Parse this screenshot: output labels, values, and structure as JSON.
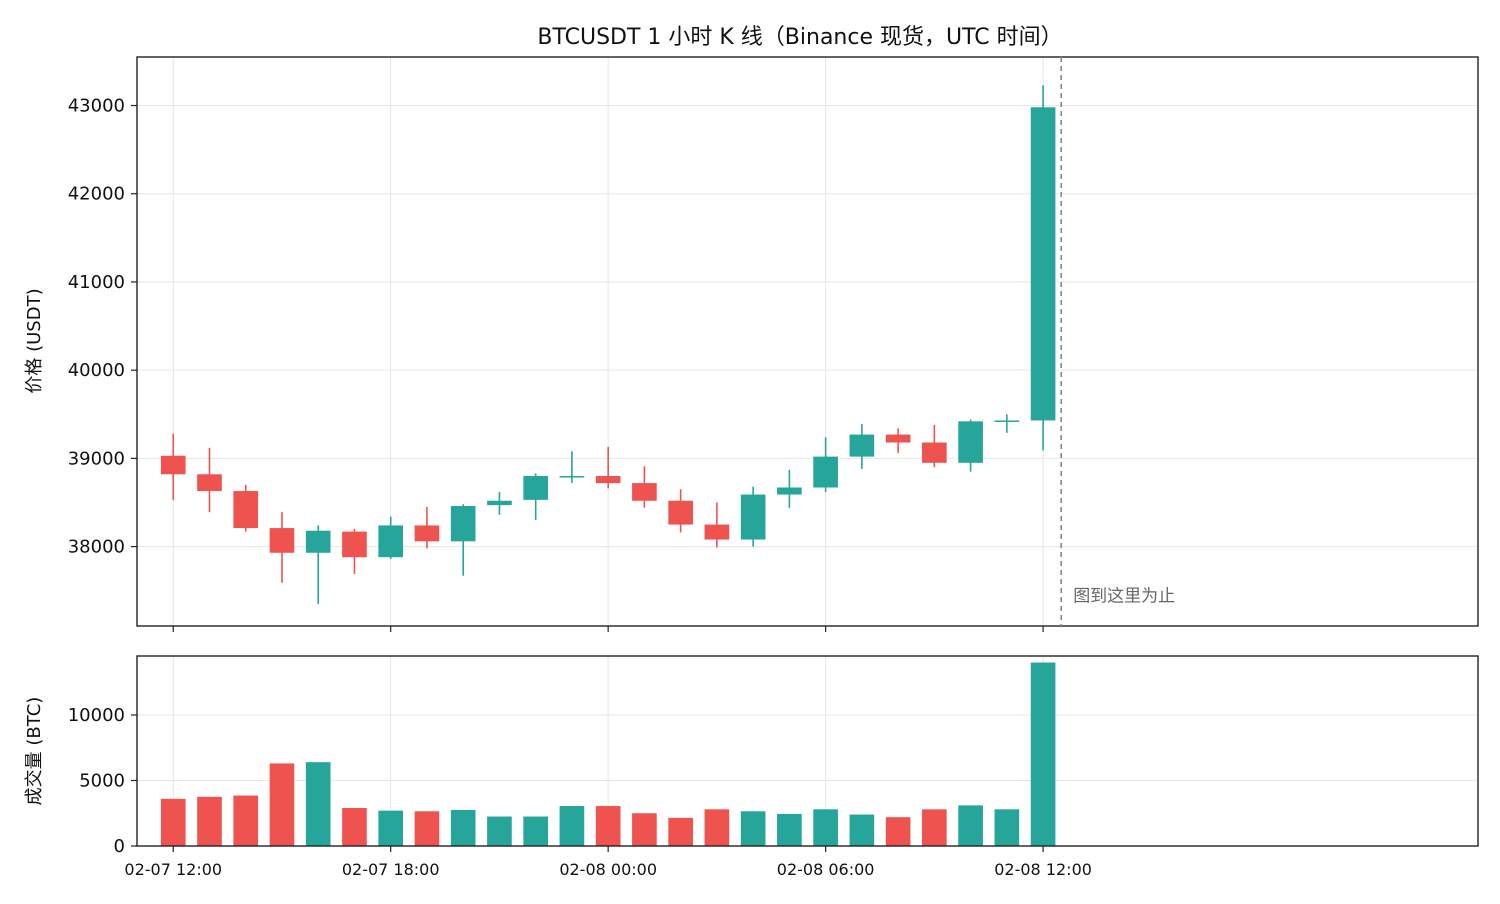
{
  "chart_data": {
    "type": "candlestick",
    "title": "BTCUSDT 1 小时 K 线（Binance 现货，UTC 时间）",
    "price_panel": {
      "ylabel": "价格 (USDT)",
      "ylim": [
        37100,
        43550
      ],
      "yticks": [
        38000,
        39000,
        40000,
        41000,
        42000,
        43000
      ],
      "grid": true
    },
    "volume_panel": {
      "ylabel": "成交量 (BTC)",
      "ylim": [
        0,
        14500
      ],
      "yticks": [
        0,
        5000,
        10000
      ],
      "grid": true
    },
    "x_ticks": [
      {
        "index": 0,
        "label": "02-07 12:00"
      },
      {
        "index": 6,
        "label": "02-07 18:00"
      },
      {
        "index": 12,
        "label": "02-08 00:00"
      },
      {
        "index": 18,
        "label": "02-08 06:00"
      },
      {
        "index": 24,
        "label": "02-08 12:00"
      }
    ],
    "x_range": [
      -1,
      36
    ],
    "colors": {
      "up": "#26a69a",
      "down": "#ef5350",
      "cutoff": "#888888"
    },
    "cutoff": {
      "index": 24.5,
      "label": "图到这里为止"
    },
    "candles": [
      {
        "t": "02-07 12:00",
        "open": 39030,
        "high": 39280,
        "low": 38530,
        "close": 38820,
        "volume": 3600
      },
      {
        "t": "02-07 13:00",
        "open": 38820,
        "high": 39120,
        "low": 38390,
        "close": 38630,
        "volume": 3750
      },
      {
        "t": "02-07 14:00",
        "open": 38630,
        "high": 38700,
        "low": 38170,
        "close": 38210,
        "volume": 3850
      },
      {
        "t": "02-07 15:00",
        "open": 38210,
        "high": 38390,
        "low": 37590,
        "close": 37930,
        "volume": 6300
      },
      {
        "t": "02-07 16:00",
        "open": 37930,
        "high": 38240,
        "low": 37350,
        "close": 38180,
        "volume": 6400
      },
      {
        "t": "02-07 17:00",
        "open": 38170,
        "high": 38200,
        "low": 37690,
        "close": 37880,
        "volume": 2900
      },
      {
        "t": "02-07 18:00",
        "open": 37880,
        "high": 38340,
        "low": 37860,
        "close": 38240,
        "volume": 2700
      },
      {
        "t": "02-07 19:00",
        "open": 38240,
        "high": 38450,
        "low": 37980,
        "close": 38060,
        "volume": 2650
      },
      {
        "t": "02-07 20:00",
        "open": 38060,
        "high": 38480,
        "low": 37670,
        "close": 38460,
        "volume": 2750
      },
      {
        "t": "02-07 21:00",
        "open": 38470,
        "high": 38620,
        "low": 38360,
        "close": 38520,
        "volume": 2250
      },
      {
        "t": "02-07 22:00",
        "open": 38530,
        "high": 38830,
        "low": 38300,
        "close": 38800,
        "volume": 2250
      },
      {
        "t": "02-07 23:00",
        "open": 38800,
        "high": 39080,
        "low": 38720,
        "close": 38800,
        "volume": 3050
      },
      {
        "t": "02-08 00:00",
        "open": 38800,
        "high": 39130,
        "low": 38660,
        "close": 38720,
        "volume": 3050
      },
      {
        "t": "02-08 01:00",
        "open": 38720,
        "high": 38910,
        "low": 38440,
        "close": 38520,
        "volume": 2500
      },
      {
        "t": "02-08 02:00",
        "open": 38520,
        "high": 38650,
        "low": 38160,
        "close": 38250,
        "volume": 2150
      },
      {
        "t": "02-08 03:00",
        "open": 38250,
        "high": 38500,
        "low": 37990,
        "close": 38080,
        "volume": 2800
      },
      {
        "t": "02-08 04:00",
        "open": 38080,
        "high": 38680,
        "low": 38000,
        "close": 38590,
        "volume": 2650
      },
      {
        "t": "02-08 05:00",
        "open": 38590,
        "high": 38870,
        "low": 38440,
        "close": 38670,
        "volume": 2450
      },
      {
        "t": "02-08 06:00",
        "open": 38670,
        "high": 39240,
        "low": 38620,
        "close": 39020,
        "volume": 2800
      },
      {
        "t": "02-08 07:00",
        "open": 39020,
        "high": 39390,
        "low": 38880,
        "close": 39270,
        "volume": 2400
      },
      {
        "t": "02-08 08:00",
        "open": 39270,
        "high": 39340,
        "low": 39060,
        "close": 39180,
        "volume": 2200
      },
      {
        "t": "02-08 09:00",
        "open": 39180,
        "high": 39380,
        "low": 38900,
        "close": 38950,
        "volume": 2800
      },
      {
        "t": "02-08 10:00",
        "open": 38950,
        "high": 39440,
        "low": 38850,
        "close": 39420,
        "volume": 3100
      },
      {
        "t": "02-08 11:00",
        "open": 39420,
        "high": 39500,
        "low": 39290,
        "close": 39430,
        "volume": 2800
      },
      {
        "t": "02-08 12:00",
        "open": 39430,
        "high": 43230,
        "low": 39090,
        "close": 42980,
        "volume": 14000
      }
    ]
  }
}
